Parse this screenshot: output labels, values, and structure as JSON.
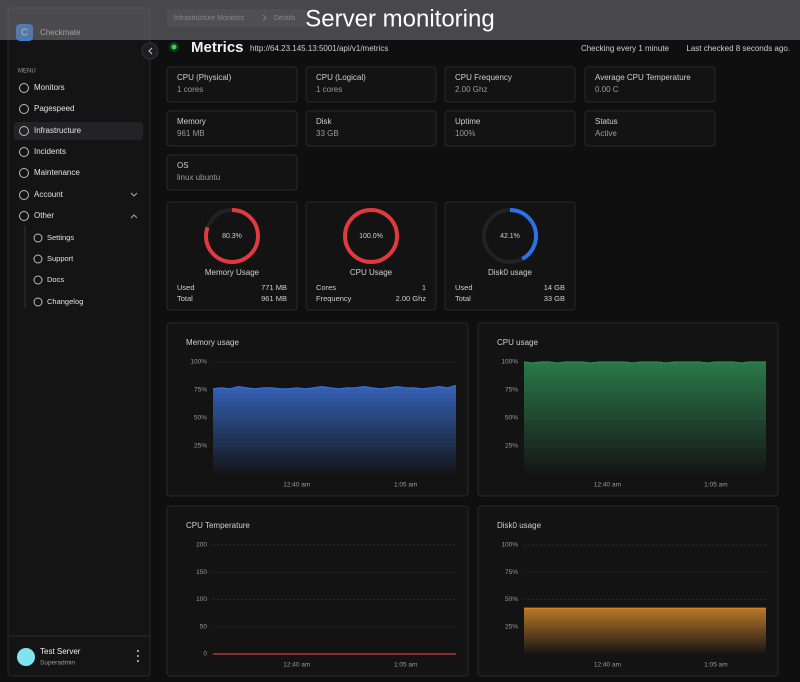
{
  "overlay_title": "Server monitoring",
  "sidebar": {
    "brand_initial": "C",
    "brand": "Checkmate",
    "menu_label": "MENU",
    "items": [
      "Monitors",
      "Pagespeed",
      "Infrastructure",
      "Incidents",
      "Maintenance",
      "Account",
      "Other"
    ],
    "sub_items": [
      "Settings",
      "Support",
      "Docs",
      "Changelog"
    ],
    "user": {
      "name": "Test Server",
      "role": "Superadmin"
    }
  },
  "breadcrumbs": [
    "Infrastructure Monitors",
    "Details"
  ],
  "header": {
    "title": "Metrics",
    "url": "http://64.23.145.13:5001/api/v1/metrics",
    "interval": "Checking every 1 minute",
    "last_checked": "Last checked 8 seconds ago."
  },
  "stats": [
    {
      "label": "CPU (Physical)",
      "value": "1 cores"
    },
    {
      "label": "CPU (Logical)",
      "value": "1 cores"
    },
    {
      "label": "CPU Frequency",
      "value": "2.00 Ghz"
    },
    {
      "label": "Average CPU Temperature",
      "value": "0.00 C"
    },
    {
      "label": "Memory",
      "value": "961 MB"
    },
    {
      "label": "Disk",
      "value": "33 GB"
    },
    {
      "label": "Uptime",
      "value": "100%"
    },
    {
      "label": "Status",
      "value": "Active"
    },
    {
      "label": "OS",
      "value": "linux ubuntu"
    }
  ],
  "gauges": [
    {
      "name": "Memory Usage",
      "value": 80.3,
      "value_label": "80.3%",
      "color": "#e0393e",
      "rows": [
        [
          "Used",
          "771 MB"
        ],
        [
          "Total",
          "961 MB"
        ]
      ]
    },
    {
      "name": "CPU Usage",
      "value": 100,
      "value_label": "100.0%",
      "color": "#e0393e",
      "rows": [
        [
          "Cores",
          "1"
        ],
        [
          "Frequency",
          "2.00 Ghz"
        ]
      ]
    },
    {
      "name": "Disk0 usage",
      "value": 42.1,
      "value_label": "42.1%",
      "color": "#2a72e5",
      "rows": [
        [
          "Used",
          "14 GB"
        ],
        [
          "Total",
          "33 GB"
        ]
      ]
    }
  ],
  "charts": [
    {
      "type": "area",
      "title": "Memory usage",
      "color": "#3a6fd3",
      "ylim": [
        0,
        100
      ],
      "yticks": [
        {
          "value": 25,
          "label": "25%"
        },
        {
          "value": 50,
          "label": "50%"
        },
        {
          "value": 75,
          "label": "75%"
        },
        {
          "value": 100,
          "label": "100%"
        }
      ],
      "categories": [
        null,
        null,
        null,
        null,
        null,
        null,
        null,
        null,
        null,
        null,
        "12:40 am",
        null,
        null,
        null,
        null,
        null,
        null,
        null,
        null,
        null,
        null,
        null,
        null,
        "1:05 am",
        null,
        null,
        null,
        null,
        null,
        null
      ],
      "values": [
        76,
        77,
        76,
        78,
        77,
        76,
        77,
        77,
        76,
        76,
        77,
        76,
        77,
        78,
        77,
        76,
        77,
        77,
        78,
        77,
        76,
        77,
        78,
        77,
        77,
        76,
        77,
        78,
        77,
        79
      ]
    },
    {
      "type": "area",
      "title": "CPU usage",
      "color": "#2f8a52",
      "ylim": [
        0,
        100
      ],
      "yticks": [
        {
          "value": 25,
          "label": "25%"
        },
        {
          "value": 50,
          "label": "50%"
        },
        {
          "value": 75,
          "label": "75%"
        },
        {
          "value": 100,
          "label": "100%"
        }
      ],
      "categories": [
        null,
        null,
        null,
        null,
        null,
        null,
        null,
        null,
        null,
        null,
        "12:40 am",
        null,
        null,
        null,
        null,
        null,
        null,
        null,
        null,
        null,
        null,
        null,
        null,
        "1:05 am",
        null,
        null,
        null,
        null,
        null,
        null
      ],
      "values": [
        100,
        99,
        100,
        100,
        99,
        100,
        100,
        100,
        99,
        100,
        100,
        100,
        100,
        99,
        100,
        100,
        100,
        99,
        100,
        100,
        100,
        100,
        99,
        100,
        100,
        100,
        99,
        100,
        100,
        100
      ]
    },
    {
      "type": "area",
      "title": "CPU Temperature",
      "color": "#d23a3a",
      "ylim": [
        0,
        200
      ],
      "yticks": [
        0,
        50,
        100,
        150,
        200
      ],
      "categories": [
        null,
        null,
        null,
        null,
        null,
        null,
        null,
        null,
        null,
        null,
        "12:40 am",
        null,
        null,
        null,
        null,
        null,
        null,
        null,
        null,
        null,
        null,
        null,
        null,
        "1:05 am",
        null,
        null,
        null,
        null,
        null,
        null
      ],
      "values": [
        0,
        0,
        0,
        0,
        0,
        0,
        0,
        0,
        0,
        0,
        0,
        0,
        0,
        0,
        0,
        0,
        0,
        0,
        0,
        0,
        0,
        0,
        0,
        0,
        0,
        0,
        0,
        0,
        0,
        0
      ]
    },
    {
      "type": "area",
      "title": "Disk0 usage",
      "color": "#d98a2b",
      "ylim": [
        0,
        100
      ],
      "yticks": [
        {
          "value": 25,
          "label": "25%"
        },
        {
          "value": 50,
          "label": "50%"
        },
        {
          "value": 75,
          "label": "75%"
        },
        {
          "value": 100,
          "label": "100%"
        }
      ],
      "categories": [
        null,
        null,
        null,
        null,
        null,
        null,
        null,
        null,
        null,
        null,
        "12:40 am",
        null,
        null,
        null,
        null,
        null,
        null,
        null,
        null,
        null,
        null,
        null,
        null,
        "1:05 am",
        null,
        null,
        null,
        null,
        null,
        null
      ],
      "values": [
        42,
        42,
        42,
        42,
        42,
        42,
        42,
        42,
        42,
        42,
        42,
        42,
        42,
        42,
        42,
        42,
        42,
        42,
        42,
        42,
        42,
        42,
        42,
        42,
        42,
        42,
        42,
        42,
        42,
        42
      ]
    }
  ]
}
